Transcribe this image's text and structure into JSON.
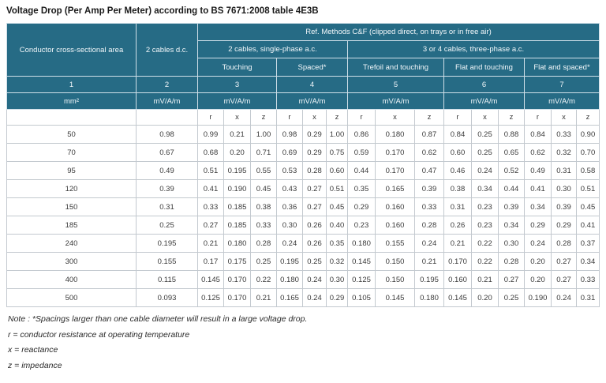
{
  "title": "Voltage Drop (Per Amp Per Meter) according to BS 7671:2008 table 4E3B",
  "table": {
    "header": {
      "conductor_area": "Conductor cross-sectional area",
      "dc_cables": "2 cables d.c.",
      "ref_methods": "Ref. Methods C&F (clipped direct, on trays or in free air)",
      "single_phase": "2 cables, single-phase a.c.",
      "three_phase": "3 or 4 cables, three-phase a.c.",
      "sub_groups": [
        "Touching",
        "Spaced*",
        "Trefoil and touching",
        "Flat and touching",
        "Flat and spaced*"
      ],
      "numbers": [
        "1",
        "2",
        "3",
        "4",
        "5",
        "6",
        "7"
      ],
      "units": [
        "mm²",
        "mV/A/m",
        "mV/A/m",
        "mV/A/m",
        "mV/A/m",
        "mV/A/m",
        "mV/A/m"
      ],
      "rxz": [
        "r",
        "x",
        "z"
      ]
    },
    "rows": [
      {
        "size": "50",
        "dc": "0.98",
        "values": [
          "0.99",
          "0.21",
          "1.00",
          "0.98",
          "0.29",
          "1.00",
          "0.86",
          "0.180",
          "0.87",
          "0.84",
          "0.25",
          "0.88",
          "0.84",
          "0.33",
          "0.90"
        ]
      },
      {
        "size": "70",
        "dc": "0.67",
        "values": [
          "0.68",
          "0.20",
          "0.71",
          "0.69",
          "0.29",
          "0.75",
          "0.59",
          "0.170",
          "0.62",
          "0.60",
          "0.25",
          "0.65",
          "0.62",
          "0.32",
          "0.70"
        ]
      },
      {
        "size": "95",
        "dc": "0.49",
        "values": [
          "0.51",
          "0.195",
          "0.55",
          "0.53",
          "0.28",
          "0.60",
          "0.44",
          "0.170",
          "0.47",
          "0.46",
          "0.24",
          "0.52",
          "0.49",
          "0.31",
          "0.58"
        ]
      },
      {
        "size": "120",
        "dc": "0.39",
        "values": [
          "0.41",
          "0.190",
          "0.45",
          "0.43",
          "0.27",
          "0.51",
          "0.35",
          "0.165",
          "0.39",
          "0.38",
          "0.34",
          "0.44",
          "0.41",
          "0.30",
          "0.51"
        ]
      },
      {
        "size": "150",
        "dc": "0.31",
        "values": [
          "0.33",
          "0.185",
          "0.38",
          "0.36",
          "0.27",
          "0.45",
          "0.29",
          "0.160",
          "0.33",
          "0.31",
          "0.23",
          "0.39",
          "0.34",
          "0.39",
          "0.45"
        ]
      },
      {
        "size": "185",
        "dc": "0.25",
        "values": [
          "0.27",
          "0.185",
          "0.33",
          "0.30",
          "0.26",
          "0.40",
          "0.23",
          "0.160",
          "0.28",
          "0.26",
          "0.23",
          "0.34",
          "0.29",
          "0.29",
          "0.41"
        ]
      },
      {
        "size": "240",
        "dc": "0.195",
        "values": [
          "0.21",
          "0.180",
          "0.28",
          "0.24",
          "0.26",
          "0.35",
          "0.180",
          "0.155",
          "0.24",
          "0.21",
          "0.22",
          "0.30",
          "0.24",
          "0.28",
          "0.37"
        ]
      },
      {
        "size": "300",
        "dc": "0.155",
        "values": [
          "0.17",
          "0.175",
          "0.25",
          "0.195",
          "0.25",
          "0.32",
          "0.145",
          "0.150",
          "0.21",
          "0.170",
          "0.22",
          "0.28",
          "0.20",
          "0.27",
          "0.34"
        ]
      },
      {
        "size": "400",
        "dc": "0.115",
        "values": [
          "0.145",
          "0.170",
          "0.22",
          "0.180",
          "0.24",
          "0.30",
          "0.125",
          "0.150",
          "0.195",
          "0.160",
          "0.21",
          "0.27",
          "0.20",
          "0.27",
          "0.33"
        ]
      },
      {
        "size": "500",
        "dc": "0.093",
        "values": [
          "0.125",
          "0.170",
          "0.21",
          "0.165",
          "0.24",
          "0.29",
          "0.105",
          "0.145",
          "0.180",
          "0.145",
          "0.20",
          "0.25",
          "0.190",
          "0.24",
          "0.31"
        ]
      }
    ]
  },
  "notes": [
    "Note : *Spacings larger than one cable diameter will result in a large voltage drop.",
    "r = conductor resistance at operating temperature",
    "x = reactance",
    "z = impedance"
  ],
  "colors": {
    "header_bg": "#266b85",
    "header_text": "#f2f7fa",
    "header_border": "#cfdfe8",
    "body_border": "#c3c9cf",
    "body_text": "#3a3a3a"
  }
}
